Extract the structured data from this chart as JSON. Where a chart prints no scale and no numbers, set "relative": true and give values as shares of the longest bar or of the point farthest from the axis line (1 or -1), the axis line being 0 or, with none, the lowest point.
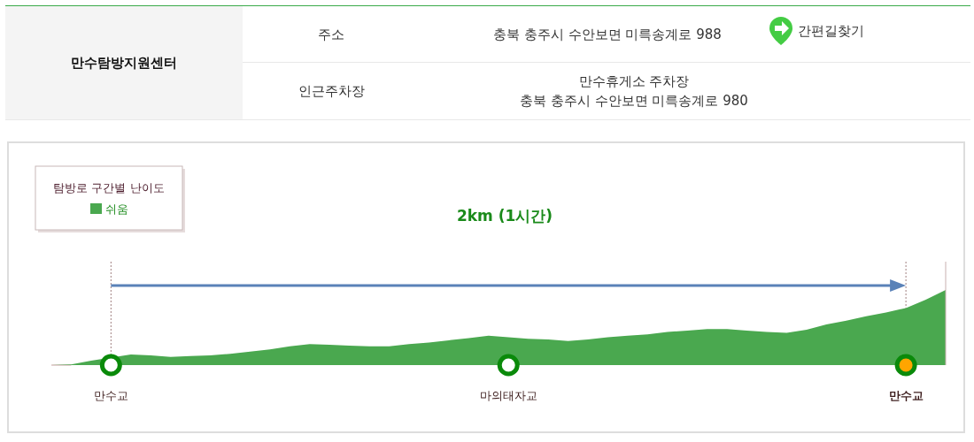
{
  "chart_data": [
    {
      "type": "other",
      "annotations": [
        "만수탐방지원센터",
        "주소",
        "충북 충주시 수안보면 미륵송계로 988",
        "간편길찾기",
        "인근주차장",
        "만수휴게소 주차장",
        "충북 충주시 수안보면 미륵송계로 980"
      ]
    },
    {
      "type": "area",
      "relative": true,
      "legend_title": "탐방로 구간별 난이도",
      "legend": "top left",
      "categories": [
        null,
        null,
        null,
        "만수교",
        null,
        null,
        null,
        null,
        null,
        null,
        null,
        null,
        null,
        null,
        null,
        null,
        null,
        null,
        null,
        null,
        null,
        null,
        null,
        "마의태자교",
        null,
        null,
        null,
        null,
        null,
        null,
        null,
        null,
        null,
        null,
        null,
        null,
        null,
        null,
        null,
        null,
        null,
        null,
        null,
        "만수교",
        null,
        null
      ],
      "series": [
        {
          "name": "쉬움",
          "color": "#4aa84f",
          "values": [
            0,
            0.01,
            0.06,
            0.1,
            0.14,
            0.13,
            0.11,
            0.12,
            0.13,
            0.15,
            0.18,
            0.21,
            0.25,
            0.28,
            0.27,
            0.26,
            0.25,
            0.25,
            0.28,
            0.3,
            0.33,
            0.36,
            0.39,
            0.37,
            0.35,
            0.34,
            0.32,
            0.34,
            0.37,
            0.39,
            0.41,
            0.44,
            0.46,
            0.48,
            0.48,
            0.46,
            0.44,
            0.43,
            0.47,
            0.54,
            0.59,
            0.65,
            0.7,
            0.76,
            0.87,
            1
          ]
        },
        {
          "type": "scatter",
          "marker": "circle",
          "color": "#0a8a0a",
          "values": [
            null,
            null,
            null,
            0,
            null,
            null,
            null,
            null,
            null,
            null,
            null,
            null,
            null,
            null,
            null,
            null,
            null,
            null,
            null,
            null,
            null,
            null,
            null,
            0,
            null,
            null,
            null,
            null,
            null,
            null,
            null,
            null,
            null,
            null,
            null,
            null,
            null,
            null,
            null,
            null,
            null,
            null,
            null,
            0,
            null,
            null
          ],
          "colors": [
            null,
            null,
            null,
            "#ffffff",
            null,
            null,
            null,
            null,
            null,
            null,
            null,
            null,
            null,
            null,
            null,
            null,
            null,
            null,
            null,
            null,
            null,
            null,
            null,
            "#ffffff",
            null,
            null,
            null,
            null,
            null,
            null,
            null,
            null,
            null,
            null,
            null,
            null,
            null,
            null,
            null,
            null,
            null,
            null,
            null,
            "#ffa500",
            null,
            null
          ]
        }
      ],
      "annotations": [
        "2km (1시간)"
      ]
    }
  ]
}
